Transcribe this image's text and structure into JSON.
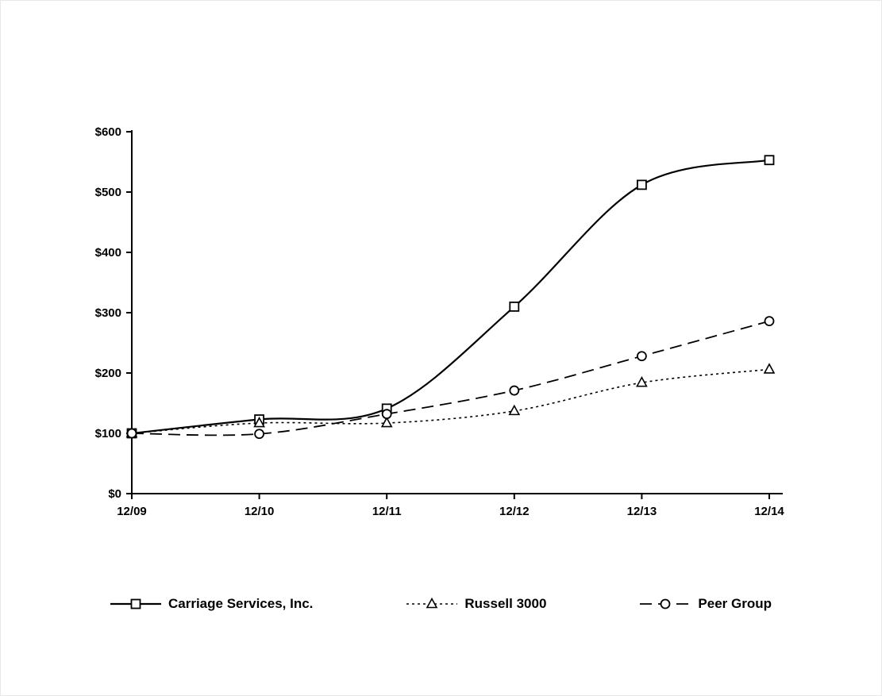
{
  "chart_data": {
    "type": "line",
    "title": "",
    "xlabel": "",
    "ylabel": "",
    "grid": false,
    "legend_position": "bottom",
    "ylim": [
      0,
      600
    ],
    "y_ticks": [
      "$0",
      "$100",
      "$200",
      "$300",
      "$400",
      "$500",
      "$600"
    ],
    "x_categories": [
      "12/09",
      "12/10",
      "12/11",
      "12/12",
      "12/13",
      "12/14"
    ],
    "series": [
      {
        "name": "Carriage Services, Inc.",
        "marker": "square",
        "dash": "solid",
        "values": [
          100,
          123,
          141,
          310,
          512,
          553
        ]
      },
      {
        "name": "Russell 3000",
        "marker": "triangle",
        "dash": "dotted",
        "values": [
          100,
          117,
          117,
          137,
          184,
          206
        ]
      },
      {
        "name": "Peer Group",
        "marker": "circle",
        "dash": "dashed",
        "values": [
          100,
          99,
          132,
          171,
          228,
          286
        ]
      }
    ],
    "colors": {
      "line": "#000000",
      "marker_fill": "#ffffff",
      "background": "#ffffff"
    }
  }
}
